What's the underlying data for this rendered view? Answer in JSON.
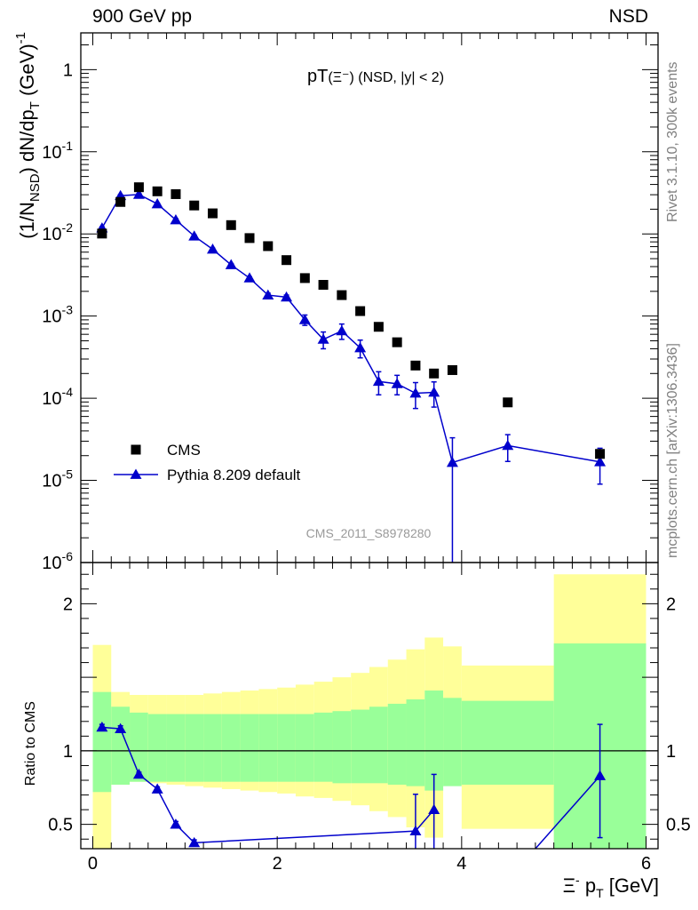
{
  "header": {
    "left": "900 GeV pp",
    "right": "NSD"
  },
  "side_text": {
    "top": "Rivet 3.1.10,  300k events",
    "bottom": "mcplots.cern.ch [arXiv:1306.3436]"
  },
  "colors": {
    "cms": "#000000",
    "pythia": "#0000cc",
    "band_outer": "#ffff99",
    "band_inner": "#99ff99",
    "source_text": "#999999"
  },
  "chart_data": [
    {
      "type": "scatter",
      "panel": "main",
      "title": "pT(Ξ⁻) (NSD, |y| < 2)",
      "title_main": "pT",
      "title_particle": "(Ξ⁻)",
      "title_cut": "(NSD, |y| < 2)",
      "ylabel": "(1/N_NSD) dN/dp_T (GeV)^-1",
      "ylabel_parts": {
        "pre": "(1/N",
        "sub1": "NSD",
        "mid": ") dN/dp",
        "sub2": "T",
        "post": " (GeV)",
        "sup": "-1"
      },
      "yscale": "log",
      "xlim": [
        -0.13,
        6.13
      ],
      "ylim": [
        1e-06,
        2.8
      ],
      "ytick_labels": [
        "1",
        "10^-1",
        "10^-2",
        "10^-3",
        "10^-4",
        "10^-5",
        "10^-6"
      ],
      "ytick_values": [
        1,
        0.1,
        0.01,
        0.001,
        0.0001,
        1e-05,
        1e-06
      ],
      "source_label": "CMS_2011_S8978280",
      "legend": [
        "CMS",
        "Pythia 8.209 default"
      ],
      "legend_position": "bottom-left",
      "series": [
        {
          "name": "CMS",
          "marker": "square",
          "x": [
            0.1,
            0.3,
            0.5,
            0.7,
            0.9,
            1.1,
            1.3,
            1.5,
            1.7,
            1.9,
            2.1,
            2.3,
            2.5,
            2.7,
            2.9,
            3.1,
            3.3,
            3.5,
            3.7,
            3.9,
            4.5,
            5.5
          ],
          "y": [
            0.0101,
            0.0245,
            0.037,
            0.033,
            0.0305,
            0.0222,
            0.0178,
            0.0128,
            0.0089,
            0.0071,
            0.0048,
            0.0029,
            0.0024,
            0.0018,
            0.00115,
            0.00074,
            0.00048,
            0.00025,
            0.0002,
            0.00022,
            8.9e-05,
            2.1e-05
          ]
        },
        {
          "name": "Pythia 8.209 default",
          "marker": "triangle",
          "line": true,
          "x": [
            0.1,
            0.3,
            0.5,
            0.7,
            0.9,
            1.1,
            1.3,
            1.5,
            1.7,
            1.9,
            2.1,
            2.3,
            2.5,
            2.7,
            2.9,
            3.1,
            3.3,
            3.5,
            3.7,
            3.9,
            4.5,
            5.5
          ],
          "y": [
            0.0118,
            0.0292,
            0.0302,
            0.0232,
            0.0148,
            0.0094,
            0.0065,
            0.0042,
            0.0029,
            0.0018,
            0.0017,
            0.0009,
            0.00052,
            0.00066,
            0.00041,
            0.00016,
            0.00015,
            0.000115,
            0.000118,
            1.65e-05,
            2.65e-05,
            1.68e-05
          ],
          "err_low": [
            0.0004,
            0.0008,
            0.0008,
            0.0006,
            0.0005,
            0.0003,
            0.0002,
            0.00015,
            0.0001,
            0.0001,
            0.0001,
            0.00013,
            0.00012,
            0.00014,
            0.0001,
            5e-05,
            4e-05,
            4e-05,
            4e-05,
            1.64e-05,
            9.5e-06,
            7.8e-06
          ],
          "err_high": [
            0.0004,
            0.0008,
            0.0008,
            0.0006,
            0.0005,
            0.0003,
            0.0002,
            0.00015,
            0.0001,
            0.0001,
            0.0001,
            0.00013,
            0.00012,
            0.00014,
            0.0001,
            5e-05,
            4e-05,
            4e-05,
            4e-05,
            1.65e-05,
            9.5e-06,
            7.8e-06
          ]
        }
      ]
    },
    {
      "type": "scatter",
      "panel": "ratio",
      "ylabel": "Ratio to CMS",
      "xlabel": "Ξ⁻ p_T [GeV]",
      "xlabel_parts": {
        "pre": "Ξ",
        "sup": "-",
        "mid": " p",
        "sub": "T",
        "post": " [GeV]"
      },
      "xlim": [
        -0.13,
        6.13
      ],
      "ylim": [
        0.335,
        2.28
      ],
      "xticks": [
        0,
        2,
        4,
        6
      ],
      "yticks": [
        0.5,
        1,
        2
      ],
      "ytick_labels": [
        "0.5",
        "1",
        "2"
      ],
      "reference_line": 1,
      "bands": {
        "bin_edges": [
          0,
          0.2,
          0.4,
          0.6,
          0.8,
          1.0,
          1.2,
          1.4,
          1.6,
          1.8,
          2.0,
          2.2,
          2.4,
          2.6,
          2.8,
          3.0,
          3.2,
          3.4,
          3.6,
          3.8,
          4.0,
          5.0,
          6.0
        ],
        "inner_low": [
          0.72,
          0.77,
          0.79,
          0.79,
          0.79,
          0.79,
          0.79,
          0.79,
          0.79,
          0.79,
          0.79,
          0.79,
          0.79,
          0.78,
          0.78,
          0.78,
          0.77,
          0.76,
          0.73,
          0.76,
          0.77,
          0.0
        ],
        "inner_high": [
          1.4,
          1.3,
          1.26,
          1.25,
          1.25,
          1.25,
          1.25,
          1.25,
          1.25,
          1.25,
          1.25,
          1.25,
          1.26,
          1.27,
          1.28,
          1.3,
          1.32,
          1.35,
          1.41,
          1.36,
          1.34,
          1.73
        ],
        "outer_low": [
          0.0,
          0.77,
          0.79,
          0.78,
          0.77,
          0.76,
          0.75,
          0.74,
          0.73,
          0.72,
          0.71,
          0.69,
          0.68,
          0.66,
          0.63,
          0.59,
          0.55,
          0.48,
          0.41,
          0.78,
          0.47,
          0.0
        ],
        "outer_high": [
          1.72,
          1.4,
          1.38,
          1.38,
          1.38,
          1.38,
          1.39,
          1.4,
          1.41,
          1.42,
          1.43,
          1.45,
          1.47,
          1.5,
          1.53,
          1.57,
          1.62,
          1.69,
          1.77,
          1.71,
          1.58,
          2.2
        ]
      },
      "series": [
        {
          "name": "Pythia 8.209 default",
          "marker": "triangle",
          "line": true,
          "x": [
            0.1,
            0.3,
            0.5,
            0.7,
            0.9,
            1.1,
            3.5,
            3.7
          ],
          "y": [
            1.16,
            1.15,
            0.84,
            0.74,
            0.5,
            0.375,
            0.455,
            0.6
          ],
          "err_low": [
            0.02,
            0.02,
            0.015,
            0.015,
            0.02,
            0.02,
            0.25,
            0.3
          ],
          "err_high": [
            0.02,
            0.02,
            0.015,
            0.015,
            0.02,
            0.02,
            0.25,
            0.24
          ]
        },
        {
          "name": "Pythia 8.209 default",
          "marker": "triangle",
          "line": true,
          "x": [
            4.8,
            5.5
          ],
          "y": [
            0.335,
            0.83
          ],
          "err_low": [
            0,
            0.42
          ],
          "err_high": [
            0,
            0.35
          ]
        }
      ]
    }
  ]
}
